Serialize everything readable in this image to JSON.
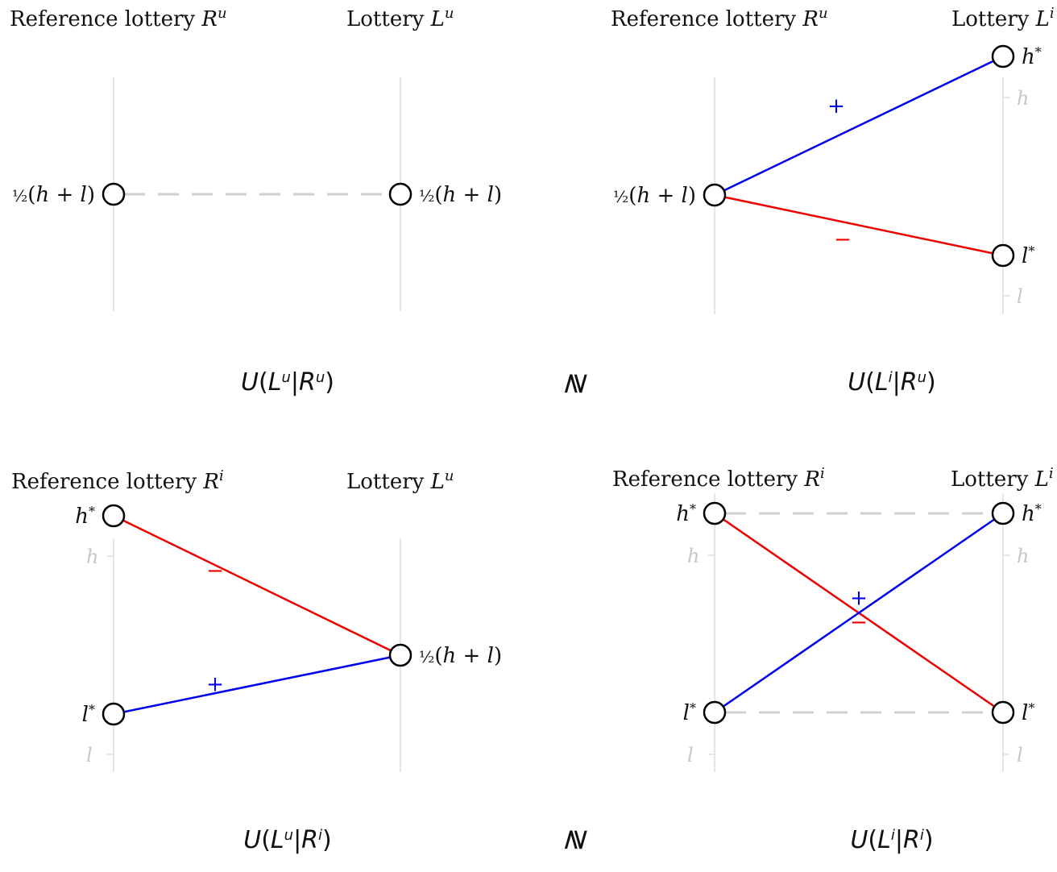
{
  "colors": {
    "axis": "#dddddd",
    "dash": "#d0d0d0",
    "blue": "#0000ee",
    "red": "#ee0000",
    "node_stroke": "#000000",
    "text": "#111111",
    "faint_label": "#c8c8c8"
  },
  "relations": {
    "top": "≷",
    "bottom": "≷"
  },
  "panels": [
    {
      "id": "top-left",
      "ref_title": "Reference lottery R",
      "ref_sup": "u",
      "lot_title": "Lottery L",
      "lot_sup": "u",
      "formula": {
        "L_sup": "u",
        "R_sup": "u"
      },
      "ref_nodes": [
        {
          "level": "mid",
          "label": "½(h + l)"
        }
      ],
      "lot_nodes": [
        {
          "level": "mid",
          "label": "½(h + l)"
        }
      ],
      "dashed": [
        [
          "mid",
          "mid"
        ]
      ],
      "lines": [],
      "ref_ticks": [],
      "lot_ticks": []
    },
    {
      "id": "top-right",
      "ref_title": "Reference lottery R",
      "ref_sup": "u",
      "lot_title": "Lottery L",
      "lot_sup": "i",
      "formula": {
        "L_sup": "i",
        "R_sup": "u"
      },
      "ref_nodes": [
        {
          "level": "mid",
          "label": "½(h + l)"
        }
      ],
      "lot_nodes": [
        {
          "level": "hstar",
          "label": "h*"
        },
        {
          "level": "lstar",
          "label": "l*"
        }
      ],
      "dashed": [],
      "lines": [
        {
          "from": "mid",
          "to": "hstar",
          "color": "blue",
          "sign": "+"
        },
        {
          "from": "mid",
          "to": "lstar",
          "color": "red",
          "sign": "−"
        }
      ],
      "ref_ticks": [],
      "lot_ticks": [
        {
          "level": "h",
          "label": "h"
        },
        {
          "level": "l",
          "label": "l"
        }
      ]
    },
    {
      "id": "bottom-left",
      "ref_title": "Reference lottery R",
      "ref_sup": "i",
      "lot_title": "Lottery L",
      "lot_sup": "u",
      "formula": {
        "L_sup": "u",
        "R_sup": "i"
      },
      "ref_nodes": [
        {
          "level": "hstar",
          "label": "h*"
        },
        {
          "level": "lstar",
          "label": "l*"
        }
      ],
      "lot_nodes": [
        {
          "level": "mid",
          "label": "½(h + l)"
        }
      ],
      "dashed": [],
      "lines": [
        {
          "from": "hstar",
          "to": "mid",
          "color": "red",
          "sign": "−"
        },
        {
          "from": "lstar",
          "to": "mid",
          "color": "blue",
          "sign": "+"
        }
      ],
      "ref_ticks": [
        {
          "level": "h",
          "label": "h"
        },
        {
          "level": "l",
          "label": "l"
        }
      ],
      "lot_ticks": []
    },
    {
      "id": "bottom-right",
      "ref_title": "Reference lottery R",
      "ref_sup": "i",
      "lot_title": "Lottery L",
      "lot_sup": "i",
      "formula": {
        "L_sup": "i",
        "R_sup": "i"
      },
      "ref_nodes": [
        {
          "level": "hstar",
          "label": "h*"
        },
        {
          "level": "lstar",
          "label": "l*"
        }
      ],
      "lot_nodes": [
        {
          "level": "hstar",
          "label": "h*"
        },
        {
          "level": "lstar",
          "label": "l*"
        }
      ],
      "dashed": [
        [
          "hstar",
          "hstar"
        ],
        [
          "lstar",
          "lstar"
        ]
      ],
      "lines": [
        {
          "from": "hstar",
          "to": "lstar",
          "color": "red",
          "sign": "−"
        },
        {
          "from": "lstar",
          "to": "hstar",
          "color": "blue",
          "sign": "+"
        }
      ],
      "ref_ticks": [
        {
          "level": "h",
          "label": "h"
        },
        {
          "level": "l",
          "label": "l"
        }
      ],
      "lot_ticks": [
        {
          "level": "h",
          "label": "h"
        },
        {
          "level": "l",
          "label": "l"
        }
      ]
    }
  ]
}
